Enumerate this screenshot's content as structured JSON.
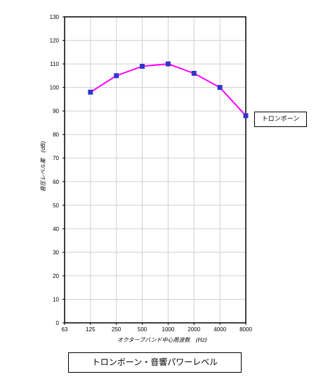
{
  "chart_data": {
    "type": "line",
    "title": "トロンボーン・音響パワーレベル",
    "xlabel": "オクターブバンド中心周波数　(Hz)",
    "ylabel": "音圧レベル差　(dB)",
    "categories": [
      "63",
      "125",
      "250",
      "500",
      "1000",
      "2000",
      "4000",
      "8000"
    ],
    "ylim": [
      0,
      130
    ],
    "yticks": [
      0,
      10,
      20,
      30,
      40,
      50,
      60,
      70,
      80,
      90,
      100,
      110,
      120,
      130
    ],
    "grid": true,
    "legend_position": "right",
    "series": [
      {
        "name": "トロンボーン",
        "color": "#ff00ff",
        "marker_color": "#3333cc",
        "values": [
          null,
          98,
          105,
          109,
          110,
          106,
          100,
          88
        ]
      }
    ]
  }
}
